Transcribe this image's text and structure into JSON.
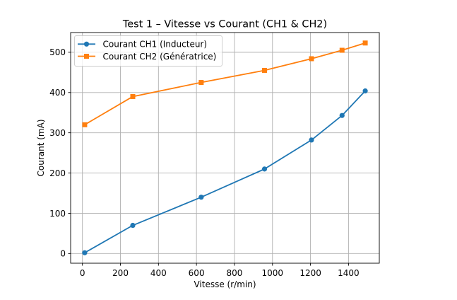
{
  "figure": {
    "background": "#ffffff"
  },
  "chart_data": {
    "type": "line",
    "title": "Test 1 – Vitesse vs Courant (CH1 & CH2)",
    "xlabel": "Vitesse (r/min)",
    "ylabel": "Courant (mA)",
    "x": [
      12,
      265,
      625,
      958,
      1205,
      1366,
      1488
    ],
    "series": [
      {
        "name": "Courant CH1 (Inducteur)",
        "marker": "circle",
        "color": "#1f77b4",
        "values": [
          2,
          70,
          140,
          210,
          282,
          343,
          404
        ]
      },
      {
        "name": "Courant CH2 (Génératrice)",
        "marker": "square",
        "color": "#ff7f0e",
        "values": [
          320,
          390,
          425,
          455,
          484,
          505,
          523
        ]
      }
    ],
    "xlim": [
      -62,
      1562
    ],
    "ylim": [
      -24,
      549
    ],
    "x_ticks": [
      0,
      200,
      400,
      600,
      800,
      1000,
      1200,
      1400
    ],
    "y_ticks": [
      0,
      100,
      200,
      300,
      400,
      500
    ],
    "grid": true,
    "legend": {
      "location": "upper-left"
    }
  }
}
